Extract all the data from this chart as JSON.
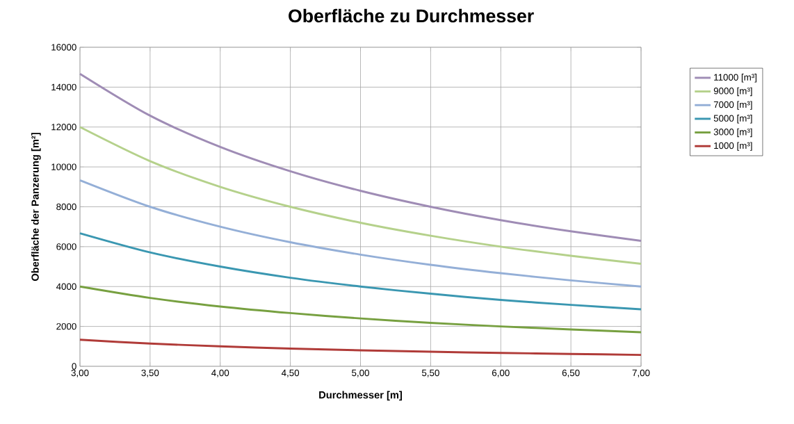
{
  "chart_data": {
    "type": "line",
    "title": "Oberfläche zu Durchmesser",
    "xlabel": "Durchmesser [m]",
    "ylabel": "Oberfläche der Panzerung  [m²]",
    "x": [
      3.0,
      3.5,
      4.0,
      4.5,
      5.0,
      5.5,
      6.0,
      6.5,
      7.0
    ],
    "series": [
      {
        "name": "11000 [m³]",
        "color": "#9f8cb5",
        "values": [
          14670,
          12570,
          11000,
          9780,
          8800,
          8000,
          7330,
          6770,
          6290
        ]
      },
      {
        "name": "9000 [m³]",
        "color": "#b5d18b",
        "values": [
          12000,
          10290,
          9000,
          8000,
          7200,
          6550,
          6000,
          5540,
          5140
        ]
      },
      {
        "name": "7000 [m³]",
        "color": "#94afd7",
        "values": [
          9330,
          8000,
          7000,
          6220,
          5600,
          5090,
          4670,
          4310,
          4000
        ]
      },
      {
        "name": "5000 [m³]",
        "color": "#3a97b1",
        "values": [
          6670,
          5710,
          5000,
          4440,
          4000,
          3640,
          3330,
          3080,
          2860
        ]
      },
      {
        "name": "3000 [m³]",
        "color": "#77a040",
        "values": [
          4000,
          3430,
          3000,
          2670,
          2400,
          2180,
          2000,
          1850,
          1710
        ]
      },
      {
        "name": "1000 [m³]",
        "color": "#b03b38",
        "values": [
          1330,
          1140,
          1000,
          890,
          800,
          730,
          670,
          620,
          570
        ]
      }
    ],
    "xlim": [
      3.0,
      7.0
    ],
    "ylim": [
      0,
      16000
    ],
    "xticks": [
      {
        "value": 3.0,
        "label": "3,00"
      },
      {
        "value": 3.5,
        "label": "3,50"
      },
      {
        "value": 4.0,
        "label": "4,00"
      },
      {
        "value": 4.5,
        "label": "4,50"
      },
      {
        "value": 5.0,
        "label": "5,00"
      },
      {
        "value": 5.5,
        "label": "5,50"
      },
      {
        "value": 6.0,
        "label": "6,00"
      },
      {
        "value": 6.5,
        "label": "6,50"
      },
      {
        "value": 7.0,
        "label": "7,00"
      }
    ],
    "yticks": [
      0,
      2000,
      4000,
      6000,
      8000,
      10000,
      12000,
      14000,
      16000
    ],
    "grid": true,
    "legend": "right"
  }
}
